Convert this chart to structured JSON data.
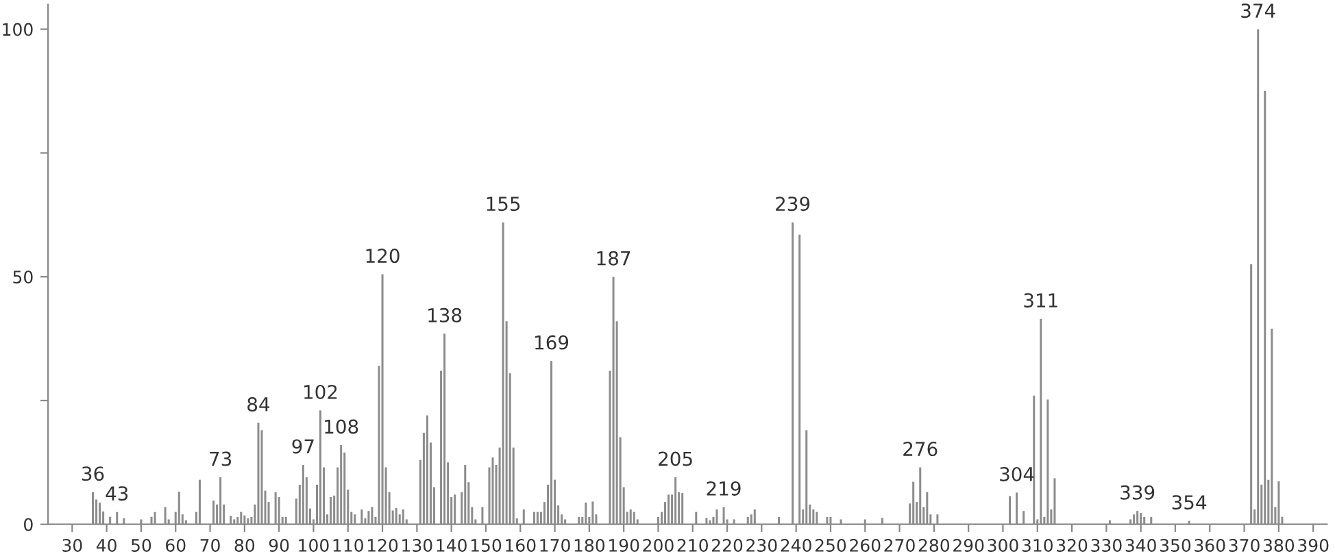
{
  "chart_data": {
    "type": "bar",
    "color": "#8c8c8c",
    "x": [
      36,
      37,
      38,
      39,
      41,
      43,
      45,
      50,
      53,
      54,
      57,
      58,
      60,
      61,
      62,
      63,
      66,
      67,
      71,
      72,
      73,
      74,
      76,
      77,
      78,
      79,
      80,
      81,
      82,
      83,
      84,
      85,
      86,
      87,
      89,
      90,
      91,
      92,
      95,
      96,
      97,
      98,
      99,
      100,
      101,
      102,
      103,
      104,
      105,
      106,
      107,
      108,
      109,
      110,
      111,
      112,
      114,
      115,
      116,
      117,
      118,
      119,
      120,
      121,
      122,
      123,
      124,
      125,
      126,
      127,
      131,
      132,
      133,
      134,
      135,
      137,
      138,
      139,
      140,
      141,
      143,
      144,
      145,
      146,
      147,
      149,
      151,
      152,
      153,
      154,
      155,
      156,
      157,
      158,
      159,
      161,
      164,
      165,
      166,
      167,
      168,
      169,
      170,
      171,
      172,
      173,
      177,
      178,
      179,
      180,
      181,
      182,
      186,
      187,
      188,
      189,
      190,
      191,
      192,
      193,
      194,
      200,
      201,
      202,
      203,
      204,
      205,
      206,
      207,
      211,
      214,
      215,
      216,
      217,
      219,
      220,
      222,
      226,
      227,
      228,
      235,
      239,
      241,
      242,
      243,
      244,
      245,
      246,
      249,
      250,
      253,
      260,
      265,
      273,
      274,
      275,
      276,
      277,
      278,
      279,
      281,
      302,
      304,
      306,
      309,
      310,
      311,
      312,
      313,
      314,
      315,
      331,
      337,
      338,
      339,
      340,
      341,
      343,
      354,
      372,
      373,
      374,
      375,
      376,
      377,
      378,
      379,
      380,
      381
    ],
    "values": [
      6.5,
      5,
      4.4,
      2.6,
      1.5,
      2.5,
      1.2,
      1,
      1.5,
      2.5,
      3.5,
      1,
      2.5,
      6.6,
      2,
      0.8,
      2.5,
      9,
      4.8,
      4,
      9.5,
      4,
      1.7,
      1,
      1.5,
      2.5,
      1.8,
      1.2,
      1.5,
      4,
      20.5,
      19,
      6.8,
      4.5,
      6.5,
      5.5,
      1.5,
      1.5,
      5.2,
      8,
      12,
      9.5,
      3.2,
      1,
      8,
      23,
      11.5,
      2,
      5.5,
      5.8,
      11.5,
      16,
      14.5,
      7,
      2.5,
      2,
      3,
      1.2,
      2.7,
      3.5,
      1.5,
      32,
      50.5,
      11.5,
      6.5,
      2.8,
      3.3,
      2,
      3,
      1,
      13,
      18.5,
      22,
      16.5,
      7.5,
      31,
      38.5,
      12.5,
      5.5,
      6,
      6.5,
      12,
      8.5,
      3.5,
      1,
      3.5,
      11.5,
      13.5,
      12,
      15.5,
      61,
      41,
      30.5,
      15.5,
      1.2,
      3,
      2.5,
      2.5,
      2.5,
      4.5,
      8,
      33,
      9,
      3.8,
      2,
      1,
      1.5,
      1.5,
      4.4,
      1.5,
      4.6,
      2,
      31,
      50,
      41,
      17.6,
      7.5,
      2.5,
      3,
      2.5,
      1,
      1.5,
      2.5,
      4.5,
      6,
      6,
      9.5,
      6.5,
      6.3,
      2.5,
      1.3,
      0.8,
      1.5,
      3,
      3.5,
      1,
      1,
      1.5,
      2,
      3,
      1.5,
      61,
      58.5,
      3,
      19,
      4,
      3,
      2.5,
      1.5,
      1.5,
      1,
      1,
      1.3,
      4.2,
      8.6,
      4.5,
      11.5,
      3.5,
      6.5,
      2,
      2,
      5.7,
      6.4,
      2.7,
      26,
      1,
      41.5,
      1.5,
      25.2,
      3,
      9.3,
      0.8,
      1,
      2,
      2.7,
      2.3,
      1.5,
      1.5,
      0.7,
      52.5,
      3,
      100,
      8,
      87.5,
      9,
      39.5,
      3.5,
      8.7,
      1.5
    ],
    "xlim": [
      23,
      394
    ],
    "ylim": [
      0,
      105
    ],
    "xticks": [
      30,
      40,
      50,
      60,
      70,
      80,
      90,
      100,
      110,
      120,
      130,
      140,
      150,
      160,
      170,
      180,
      190,
      200,
      210,
      220,
      230,
      240,
      250,
      260,
      270,
      280,
      290,
      300,
      310,
      320,
      330,
      340,
      350,
      360,
      370,
      380,
      390
    ],
    "yticks": [
      0,
      {
        "value": 25,
        "label": null
      },
      50,
      {
        "value": 75,
        "label": null
      },
      100
    ],
    "grid": false,
    "annotations": [
      {
        "text": "36",
        "x": 36,
        "y": 6.5
      },
      {
        "text": "43",
        "x": 43,
        "y": 2.5
      },
      {
        "text": "73",
        "x": 73,
        "y": 9.5
      },
      {
        "text": "84",
        "x": 84,
        "y": 20.5
      },
      {
        "text": "97",
        "x": 97,
        "y": 12
      },
      {
        "text": "102",
        "x": 102,
        "y": 23
      },
      {
        "text": "108",
        "x": 108,
        "y": 16
      },
      {
        "text": "120",
        "x": 120,
        "y": 50.5
      },
      {
        "text": "138",
        "x": 138,
        "y": 38.5
      },
      {
        "text": "155",
        "x": 155,
        "y": 61
      },
      {
        "text": "169",
        "x": 169,
        "y": 33
      },
      {
        "text": "187",
        "x": 187,
        "y": 50
      },
      {
        "text": "205",
        "x": 205,
        "y": 9.5
      },
      {
        "text": "219",
        "x": 219,
        "y": 3.5
      },
      {
        "text": "239",
        "x": 239,
        "y": 61
      },
      {
        "text": "276",
        "x": 276,
        "y": 11.5
      },
      {
        "text": "304",
        "x": 304,
        "y": 6.4
      },
      {
        "text": "311",
        "x": 311,
        "y": 41.5
      },
      {
        "text": "339",
        "x": 339,
        "y": 2.7
      },
      {
        "text": "354",
        "x": 354,
        "y": 0.7
      },
      {
        "text": "374",
        "x": 374,
        "y": 100
      }
    ]
  }
}
